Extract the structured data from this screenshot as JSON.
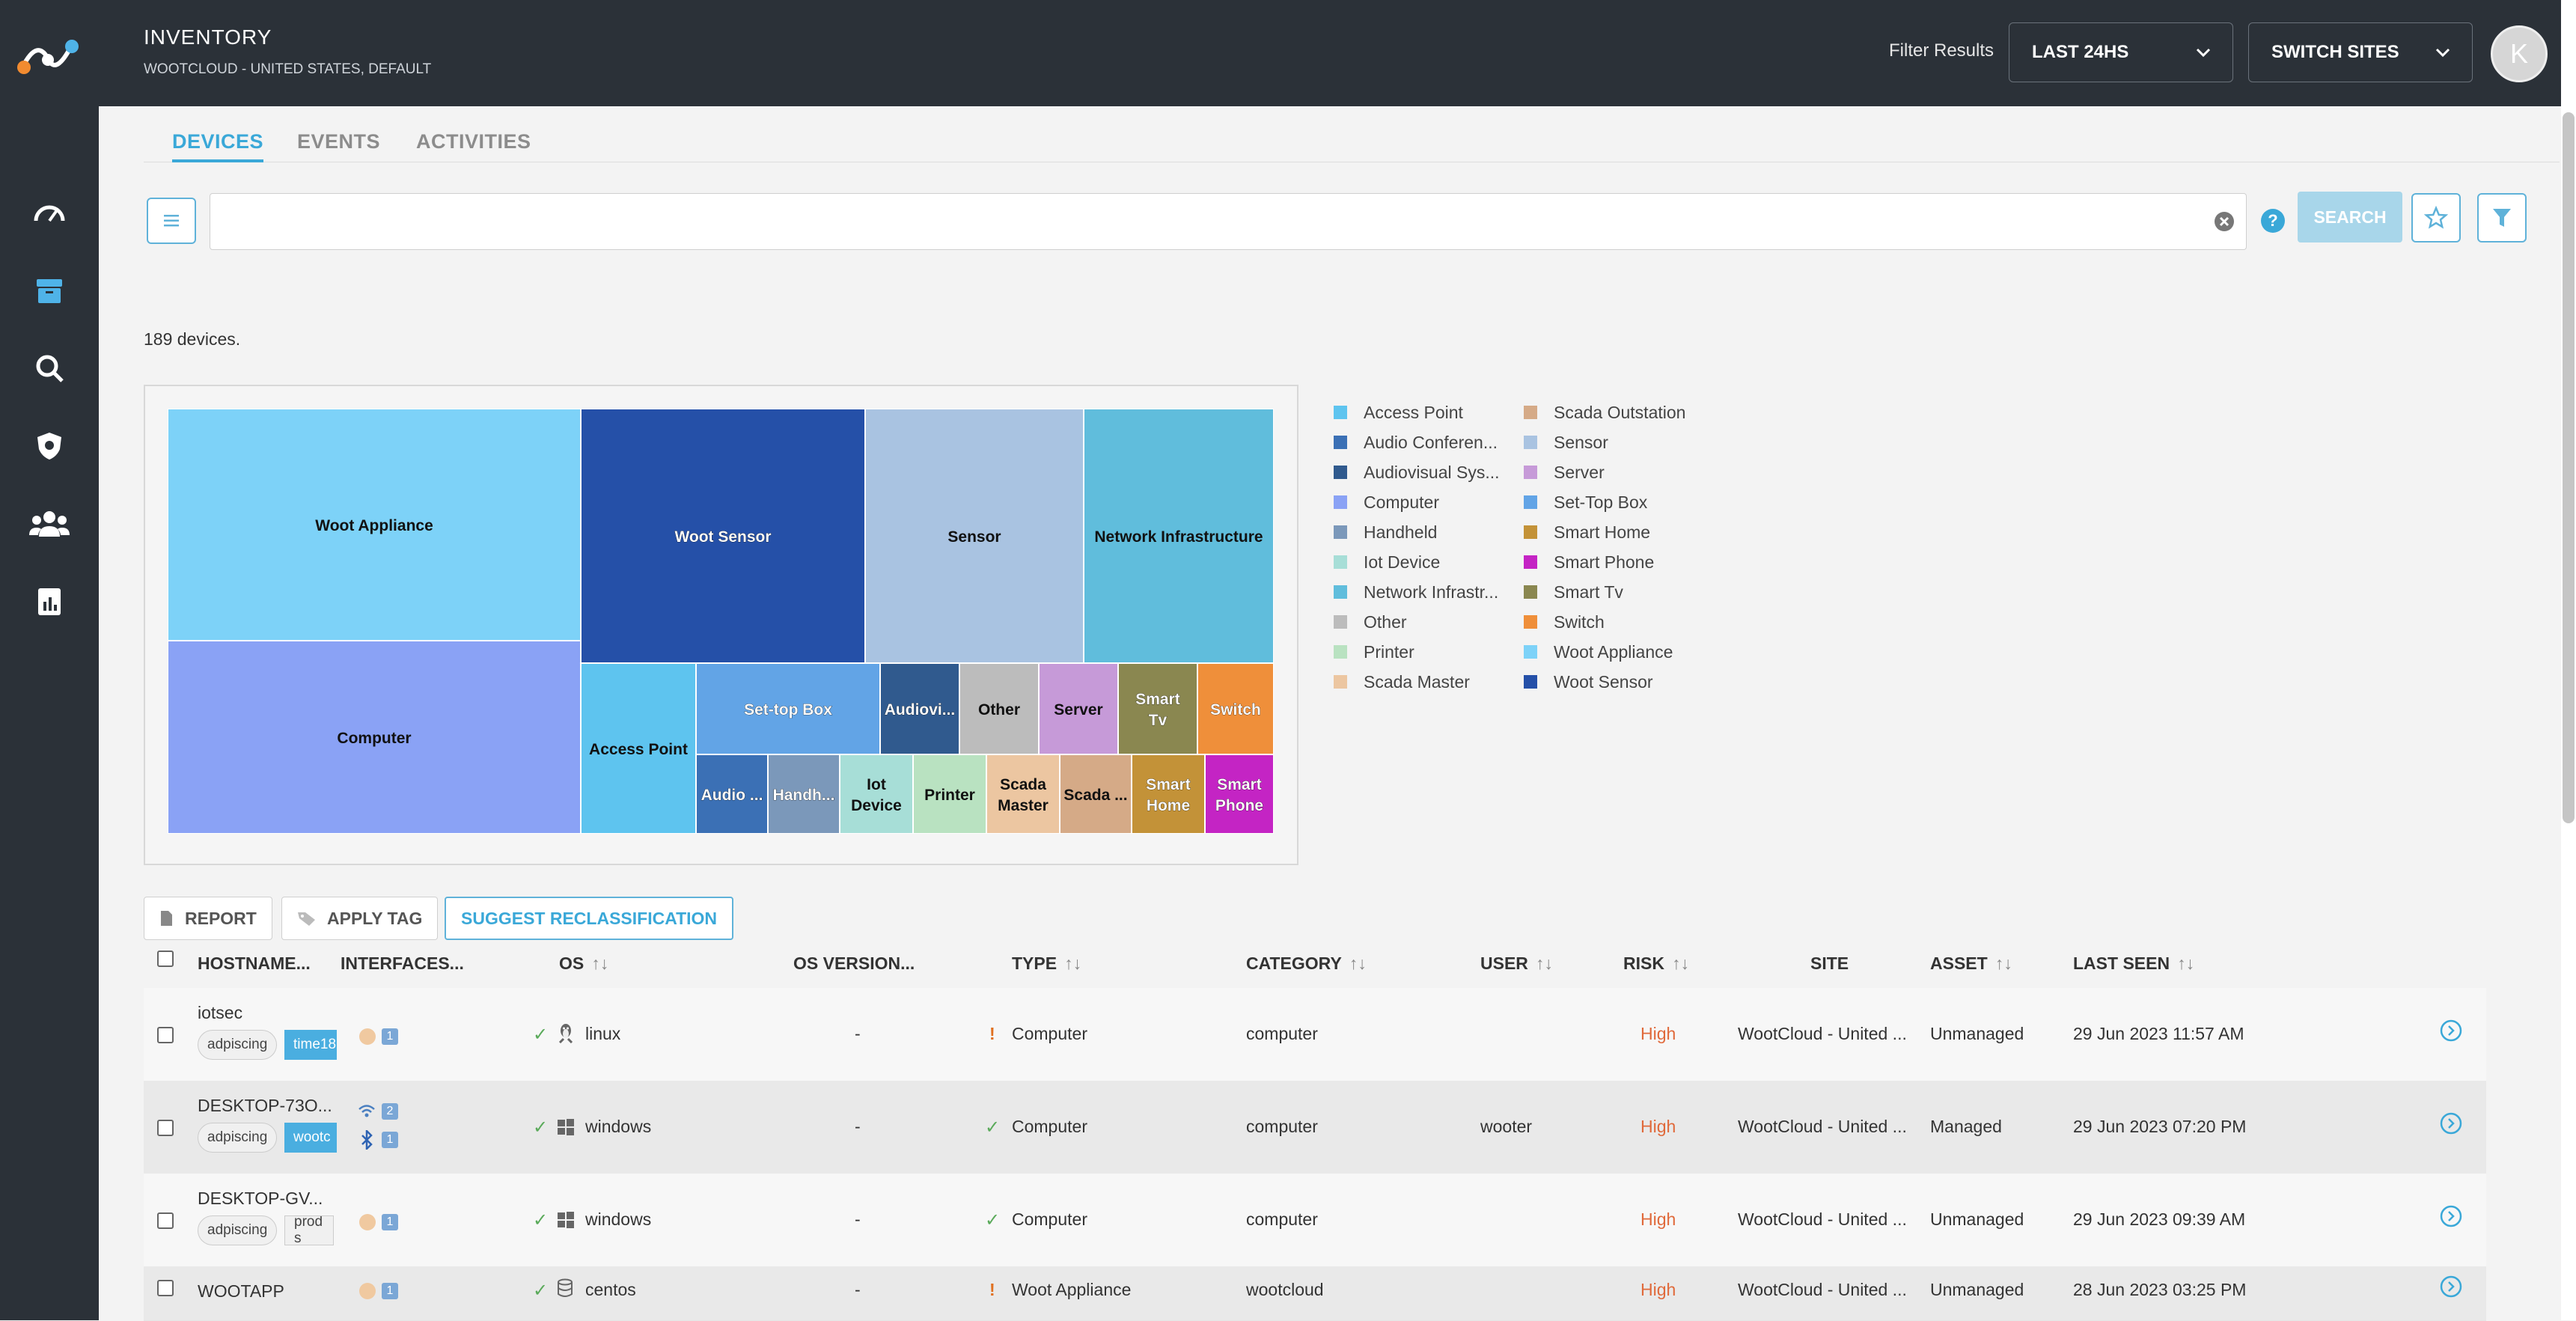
{
  "header": {
    "title": "INVENTORY",
    "subtitle": "WOOTCLOUD - UNITED STATES, DEFAULT",
    "filter_label": "Filter Results",
    "time_filter": "LAST 24HS",
    "site_switch": "SWITCH SITES",
    "avatar_initial": "K"
  },
  "sidebar": {
    "items": [
      {
        "icon": "speedometer-icon"
      },
      {
        "icon": "inventory-box-icon",
        "active": true
      },
      {
        "icon": "search-icon"
      },
      {
        "icon": "shield-icon"
      },
      {
        "icon": "users-icon"
      },
      {
        "icon": "report-icon"
      }
    ]
  },
  "tabs": [
    "DEVICES",
    "EVENTS",
    "ACTIVITIES"
  ],
  "search": {
    "placeholder": "",
    "value": "",
    "button": "SEARCH"
  },
  "device_count": "189 devices.",
  "chart_data": {
    "type": "treemap",
    "tiles": [
      {
        "label": "Woot Appliance",
        "category": "Woot Appliance",
        "color": "#7dd2f8"
      },
      {
        "label": "Computer",
        "category": "Computer",
        "color": "#8aa2f5"
      },
      {
        "label": "Woot Sensor",
        "category": "Woot Sensor",
        "color": "#2550a8"
      },
      {
        "label": "Sensor",
        "category": "Sensor",
        "color": "#a9c3e1"
      },
      {
        "label": "Network Infrastructure",
        "category": "Network Infrastructure",
        "color": "#60bddc"
      },
      {
        "label": "Access Point",
        "category": "Access Point",
        "color": "#5ec4ef"
      },
      {
        "label": "Set-top Box",
        "category": "Set-Top Box",
        "color": "#62a4e6"
      },
      {
        "label": "Audiovi...",
        "category": "Audiovisual System",
        "color": "#305a8e"
      },
      {
        "label": "Other",
        "category": "Other",
        "color": "#bcbcbc"
      },
      {
        "label": "Server",
        "category": "Server",
        "color": "#c69ad8"
      },
      {
        "label": "Smart Tv",
        "category": "Smart Tv",
        "color": "#8a8750"
      },
      {
        "label": "Switch",
        "category": "Switch",
        "color": "#ef8f3a"
      },
      {
        "label": "Audio ...",
        "category": "Audio Conferencing",
        "color": "#3b70b5"
      },
      {
        "label": "Handh...",
        "category": "Handheld",
        "color": "#7b98ba"
      },
      {
        "label": "Iot Device",
        "category": "Iot Device",
        "color": "#a7ded7"
      },
      {
        "label": "Printer",
        "category": "Printer",
        "color": "#b9e2c1"
      },
      {
        "label": "Scada Master",
        "category": "Scada Master",
        "color": "#ecc6a1"
      },
      {
        "label": "Scada ...",
        "category": "Scada Outstation",
        "color": "#d5aa87"
      },
      {
        "label": "Smart Home",
        "category": "Smart Home",
        "color": "#c39238"
      },
      {
        "label": "Smart Phone",
        "category": "Smart Phone",
        "color": "#c424c4"
      }
    ],
    "legend": [
      {
        "label": "Access Point",
        "color": "#5ec4ef"
      },
      {
        "label": "Audio Conferen...",
        "color": "#3b70b5"
      },
      {
        "label": "Audiovisual Sys...",
        "color": "#305a8e"
      },
      {
        "label": "Computer",
        "color": "#8aa2f5"
      },
      {
        "label": "Handheld",
        "color": "#7b98ba"
      },
      {
        "label": "Iot Device",
        "color": "#a7ded7"
      },
      {
        "label": "Network Infrastr...",
        "color": "#60bddc"
      },
      {
        "label": "Other",
        "color": "#bcbcbc"
      },
      {
        "label": "Printer",
        "color": "#b9e2c1"
      },
      {
        "label": "Scada Master",
        "color": "#ecc6a1"
      },
      {
        "label": "Scada Outstation",
        "color": "#d5aa87"
      },
      {
        "label": "Sensor",
        "color": "#a9c3e1"
      },
      {
        "label": "Server",
        "color": "#c69ad8"
      },
      {
        "label": "Set-Top Box",
        "color": "#62a4e6"
      },
      {
        "label": "Smart Home",
        "color": "#c39238"
      },
      {
        "label": "Smart Phone",
        "color": "#c424c4"
      },
      {
        "label": "Smart Tv",
        "color": "#8a8750"
      },
      {
        "label": "Switch",
        "color": "#ef8f3a"
      },
      {
        "label": "Woot Appliance",
        "color": "#7dd2f8"
      },
      {
        "label": "Woot Sensor",
        "color": "#2550a8"
      }
    ]
  },
  "actions": {
    "report": "REPORT",
    "apply_tag": "APPLY TAG",
    "suggest": "SUGGEST RECLASSIFICATION"
  },
  "table": {
    "columns": [
      "HOSTNAME...",
      "INTERFACES...",
      "OS",
      "OS VERSION...",
      "TYPE",
      "CATEGORY",
      "USER",
      "RISK",
      "SITE",
      "ASSET",
      "LAST SEEN"
    ],
    "rows": [
      {
        "hostname": "iotsec",
        "tags": [
          "adpiscing",
          "time18"
        ],
        "iface": "1",
        "os": "linux",
        "os_icon": "linux-icon",
        "os_version": "-",
        "type": "Computer",
        "type_status": "!",
        "category": "computer",
        "user": "",
        "risk": "High",
        "site": "WootCloud - United ...",
        "asset": "Unmanaged",
        "last_seen": "29 Jun 2023 11:57 AM"
      },
      {
        "hostname": "DESKTOP-73O...",
        "tags": [
          "adpiscing",
          "wootc"
        ],
        "iface_wifi": "2",
        "iface_bt": "1",
        "os": "windows",
        "os_icon": "windows-icon",
        "os_version": "-",
        "type": "Computer",
        "type_status": "✓",
        "category": "computer",
        "user": "wooter",
        "risk": "High",
        "site": "WootCloud - United ...",
        "asset": "Managed",
        "last_seen": "29 Jun 2023 07:20 PM"
      },
      {
        "hostname": "DESKTOP-GV...",
        "tags": [
          "adpiscing",
          "prod s"
        ],
        "iface": "1",
        "os": "windows",
        "os_icon": "windows-icon",
        "os_version": "-",
        "type": "Computer",
        "type_status": "✓",
        "category": "computer",
        "user": "",
        "risk": "High",
        "site": "WootCloud - United ...",
        "asset": "Unmanaged",
        "last_seen": "29 Jun 2023 09:39 AM"
      },
      {
        "hostname": "WOOTAPP",
        "tags": [],
        "iface": "1",
        "os": "centos",
        "os_icon": "database-icon",
        "os_version": "-",
        "type": "Woot Appliance",
        "type_status": "!",
        "category": "wootcloud",
        "user": "",
        "risk": "High",
        "site": "WootCloud - United ...",
        "asset": "Unmanaged",
        "last_seen": "28 Jun 2023 03:25 PM"
      }
    ]
  }
}
